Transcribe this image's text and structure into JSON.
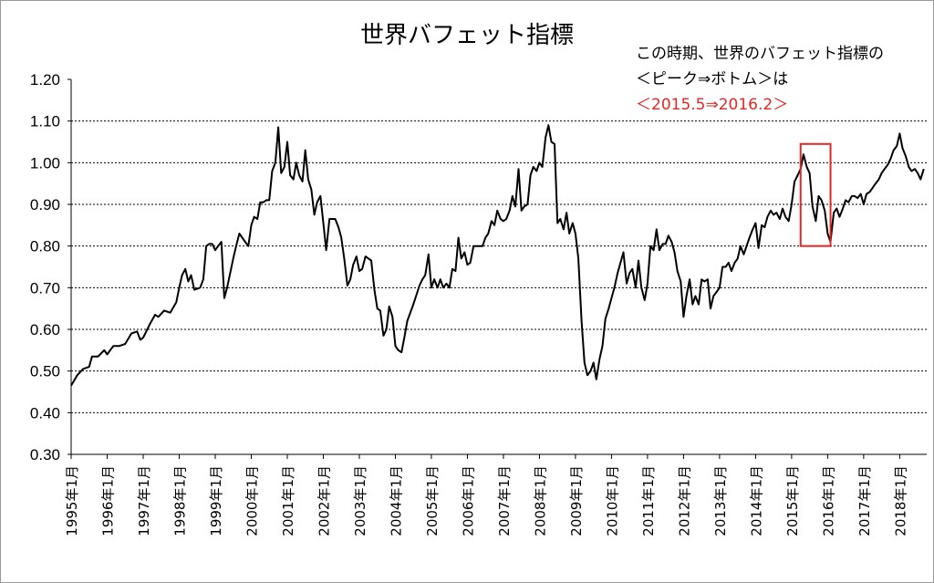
{
  "chart_data": {
    "type": "line",
    "title": "世界バフェット指標",
    "xlabel": "",
    "ylabel": "",
    "ylim": [
      0.3,
      1.2
    ],
    "yticks": [
      "1.20",
      "1.10",
      "1.00",
      "0.90",
      "0.80",
      "0.70",
      "0.60",
      "0.50",
      "0.40",
      "0.30"
    ],
    "x_start_year": 1995.0,
    "x_end_year": 2018.75,
    "x_tick_labels": [
      "1995年1月",
      "1996年1月",
      "1997年1月",
      "1998年1月",
      "1999年1月",
      "2000年1月",
      "2001年1月",
      "2002年1月",
      "2003年1月",
      "2004年1月",
      "2005年1月",
      "2006年1月",
      "2007年1月",
      "2008年1月",
      "2009年1月",
      "2010年1月",
      "2011年1月",
      "2012年1月",
      "2013年1月",
      "2014年1月",
      "2015年1月",
      "2016年1月",
      "2017年1月",
      "2018年1月"
    ],
    "grid": "horizontal dotted",
    "series": [
      {
        "name": "世界バフェット指標",
        "color": "#000000",
        "points": [
          [
            1995.0,
            0.465
          ],
          [
            1995.17,
            0.49
          ],
          [
            1995.33,
            0.505
          ],
          [
            1995.5,
            0.51
          ],
          [
            1995.58,
            0.535
          ],
          [
            1995.75,
            0.535
          ],
          [
            1995.92,
            0.55
          ],
          [
            1996.0,
            0.54
          ],
          [
            1996.17,
            0.56
          ],
          [
            1996.33,
            0.56
          ],
          [
            1996.5,
            0.565
          ],
          [
            1996.67,
            0.59
          ],
          [
            1996.83,
            0.595
          ],
          [
            1996.92,
            0.575
          ],
          [
            1997.0,
            0.58
          ],
          [
            1997.17,
            0.61
          ],
          [
            1997.33,
            0.635
          ],
          [
            1997.42,
            0.63
          ],
          [
            1997.58,
            0.645
          ],
          [
            1997.75,
            0.64
          ],
          [
            1997.92,
            0.665
          ],
          [
            1998.0,
            0.7
          ],
          [
            1998.08,
            0.73
          ],
          [
            1998.17,
            0.745
          ],
          [
            1998.25,
            0.715
          ],
          [
            1998.33,
            0.73
          ],
          [
            1998.42,
            0.695
          ],
          [
            1998.58,
            0.7
          ],
          [
            1998.67,
            0.72
          ],
          [
            1998.75,
            0.8
          ],
          [
            1998.83,
            0.805
          ],
          [
            1998.92,
            0.805
          ],
          [
            1999.0,
            0.79
          ],
          [
            1999.08,
            0.8
          ],
          [
            1999.17,
            0.81
          ],
          [
            1999.25,
            0.675
          ],
          [
            1999.33,
            0.7
          ],
          [
            1999.5,
            0.77
          ],
          [
            1999.58,
            0.8
          ],
          [
            1999.67,
            0.83
          ],
          [
            1999.83,
            0.81
          ],
          [
            1999.92,
            0.8
          ],
          [
            2000.0,
            0.85
          ],
          [
            2000.08,
            0.87
          ],
          [
            2000.17,
            0.865
          ],
          [
            2000.25,
            0.905
          ],
          [
            2000.33,
            0.905
          ],
          [
            2000.42,
            0.91
          ],
          [
            2000.5,
            0.91
          ],
          [
            2000.58,
            0.98
          ],
          [
            2000.67,
            1.0
          ],
          [
            2000.75,
            1.085
          ],
          [
            2000.83,
            0.975
          ],
          [
            2000.92,
            0.99
          ],
          [
            2001.0,
            1.05
          ],
          [
            2001.08,
            0.97
          ],
          [
            2001.17,
            0.96
          ],
          [
            2001.25,
            1.0
          ],
          [
            2001.33,
            0.97
          ],
          [
            2001.42,
            0.955
          ],
          [
            2001.5,
            1.03
          ],
          [
            2001.58,
            0.96
          ],
          [
            2001.67,
            0.935
          ],
          [
            2001.75,
            0.875
          ],
          [
            2001.83,
            0.905
          ],
          [
            2001.92,
            0.92
          ],
          [
            2002.0,
            0.855
          ],
          [
            2002.08,
            0.79
          ],
          [
            2002.17,
            0.865
          ],
          [
            2002.33,
            0.865
          ],
          [
            2002.42,
            0.845
          ],
          [
            2002.5,
            0.82
          ],
          [
            2002.58,
            0.77
          ],
          [
            2002.67,
            0.705
          ],
          [
            2002.75,
            0.72
          ],
          [
            2002.83,
            0.755
          ],
          [
            2002.92,
            0.775
          ],
          [
            2003.0,
            0.74
          ],
          [
            2003.08,
            0.745
          ],
          [
            2003.17,
            0.775
          ],
          [
            2003.33,
            0.765
          ],
          [
            2003.42,
            0.695
          ],
          [
            2003.5,
            0.65
          ],
          [
            2003.58,
            0.645
          ],
          [
            2003.67,
            0.585
          ],
          [
            2003.75,
            0.6
          ],
          [
            2003.83,
            0.655
          ],
          [
            2003.92,
            0.63
          ],
          [
            2004.0,
            0.56
          ],
          [
            2004.08,
            0.55
          ],
          [
            2004.17,
            0.545
          ],
          [
            2004.25,
            0.58
          ],
          [
            2004.33,
            0.62
          ],
          [
            2004.5,
            0.66
          ],
          [
            2004.67,
            0.705
          ],
          [
            2004.75,
            0.72
          ],
          [
            2004.83,
            0.73
          ],
          [
            2004.92,
            0.78
          ],
          [
            2005.0,
            0.7
          ],
          [
            2005.08,
            0.72
          ],
          [
            2005.17,
            0.7
          ],
          [
            2005.25,
            0.72
          ],
          [
            2005.33,
            0.7
          ],
          [
            2005.42,
            0.71
          ],
          [
            2005.5,
            0.7
          ],
          [
            2005.58,
            0.745
          ],
          [
            2005.67,
            0.74
          ],
          [
            2005.75,
            0.82
          ],
          [
            2005.83,
            0.77
          ],
          [
            2005.92,
            0.785
          ],
          [
            2006.0,
            0.755
          ],
          [
            2006.08,
            0.76
          ],
          [
            2006.17,
            0.8
          ],
          [
            2006.33,
            0.8
          ],
          [
            2006.42,
            0.8
          ],
          [
            2006.5,
            0.82
          ],
          [
            2006.58,
            0.83
          ],
          [
            2006.67,
            0.86
          ],
          [
            2006.75,
            0.85
          ],
          [
            2006.83,
            0.885
          ],
          [
            2006.92,
            0.865
          ],
          [
            2007.0,
            0.86
          ],
          [
            2007.08,
            0.865
          ],
          [
            2007.17,
            0.885
          ],
          [
            2007.25,
            0.92
          ],
          [
            2007.33,
            0.895
          ],
          [
            2007.42,
            0.985
          ],
          [
            2007.5,
            0.885
          ],
          [
            2007.58,
            0.895
          ],
          [
            2007.67,
            0.9
          ],
          [
            2007.75,
            0.97
          ],
          [
            2007.83,
            0.99
          ],
          [
            2007.92,
            0.98
          ],
          [
            2008.0,
            1.0
          ],
          [
            2008.08,
            0.99
          ],
          [
            2008.17,
            1.06
          ],
          [
            2008.25,
            1.09
          ],
          [
            2008.33,
            1.05
          ],
          [
            2008.42,
            1.045
          ],
          [
            2008.5,
            0.855
          ],
          [
            2008.58,
            0.865
          ],
          [
            2008.67,
            0.84
          ],
          [
            2008.75,
            0.88
          ],
          [
            2008.83,
            0.83
          ],
          [
            2008.92,
            0.855
          ],
          [
            2009.0,
            0.83
          ],
          [
            2009.08,
            0.77
          ],
          [
            2009.17,
            0.62
          ],
          [
            2009.25,
            0.52
          ],
          [
            2009.33,
            0.49
          ],
          [
            2009.42,
            0.5
          ],
          [
            2009.5,
            0.52
          ],
          [
            2009.58,
            0.48
          ],
          [
            2009.67,
            0.53
          ],
          [
            2009.75,
            0.56
          ],
          [
            2009.83,
            0.625
          ],
          [
            2009.92,
            0.65
          ],
          [
            2010.0,
            0.675
          ],
          [
            2010.08,
            0.7
          ],
          [
            2010.17,
            0.735
          ],
          [
            2010.25,
            0.76
          ],
          [
            2010.33,
            0.785
          ],
          [
            2010.42,
            0.71
          ],
          [
            2010.5,
            0.735
          ],
          [
            2010.58,
            0.745
          ],
          [
            2010.67,
            0.7
          ],
          [
            2010.75,
            0.765
          ],
          [
            2010.83,
            0.7
          ],
          [
            2010.92,
            0.67
          ],
          [
            2011.0,
            0.71
          ],
          [
            2011.08,
            0.8
          ],
          [
            2011.17,
            0.79
          ],
          [
            2011.25,
            0.84
          ],
          [
            2011.33,
            0.79
          ],
          [
            2011.42,
            0.805
          ],
          [
            2011.5,
            0.805
          ],
          [
            2011.58,
            0.825
          ],
          [
            2011.67,
            0.81
          ],
          [
            2011.75,
            0.785
          ],
          [
            2011.83,
            0.74
          ],
          [
            2011.92,
            0.715
          ],
          [
            2012.0,
            0.63
          ],
          [
            2012.08,
            0.68
          ],
          [
            2012.17,
            0.72
          ],
          [
            2012.25,
            0.66
          ],
          [
            2012.33,
            0.68
          ],
          [
            2012.42,
            0.66
          ],
          [
            2012.5,
            0.72
          ],
          [
            2012.58,
            0.715
          ],
          [
            2012.67,
            0.72
          ],
          [
            2012.75,
            0.65
          ],
          [
            2012.83,
            0.68
          ],
          [
            2012.92,
            0.69
          ],
          [
            2013.0,
            0.7
          ],
          [
            2013.08,
            0.75
          ],
          [
            2013.17,
            0.75
          ],
          [
            2013.25,
            0.76
          ],
          [
            2013.33,
            0.74
          ],
          [
            2013.42,
            0.76
          ],
          [
            2013.5,
            0.77
          ],
          [
            2013.58,
            0.8
          ],
          [
            2013.67,
            0.78
          ],
          [
            2013.75,
            0.8
          ],
          [
            2013.83,
            0.82
          ],
          [
            2013.92,
            0.84
          ],
          [
            2014.0,
            0.855
          ],
          [
            2014.08,
            0.795
          ],
          [
            2014.17,
            0.85
          ],
          [
            2014.25,
            0.845
          ],
          [
            2014.33,
            0.87
          ],
          [
            2014.42,
            0.885
          ],
          [
            2014.5,
            0.875
          ],
          [
            2014.58,
            0.88
          ],
          [
            2014.67,
            0.865
          ],
          [
            2014.75,
            0.89
          ],
          [
            2014.83,
            0.87
          ],
          [
            2014.92,
            0.86
          ],
          [
            2015.0,
            0.9
          ],
          [
            2015.08,
            0.955
          ],
          [
            2015.17,
            0.97
          ],
          [
            2015.25,
            0.985
          ],
          [
            2015.33,
            1.02
          ],
          [
            2015.42,
            0.99
          ],
          [
            2015.5,
            0.975
          ],
          [
            2015.58,
            0.895
          ],
          [
            2015.67,
            0.86
          ],
          [
            2015.75,
            0.92
          ],
          [
            2015.83,
            0.91
          ],
          [
            2015.92,
            0.885
          ],
          [
            2016.0,
            0.83
          ],
          [
            2016.08,
            0.81
          ],
          [
            2016.17,
            0.88
          ],
          [
            2016.25,
            0.89
          ],
          [
            2016.33,
            0.87
          ],
          [
            2016.42,
            0.89
          ],
          [
            2016.5,
            0.91
          ],
          [
            2016.58,
            0.905
          ],
          [
            2016.67,
            0.92
          ],
          [
            2016.75,
            0.92
          ],
          [
            2016.83,
            0.915
          ],
          [
            2016.92,
            0.925
          ],
          [
            2017.0,
            0.9
          ],
          [
            2017.08,
            0.925
          ],
          [
            2017.17,
            0.93
          ],
          [
            2017.25,
            0.94
          ],
          [
            2017.33,
            0.95
          ],
          [
            2017.42,
            0.96
          ],
          [
            2017.5,
            0.975
          ],
          [
            2017.58,
            0.985
          ],
          [
            2017.67,
            0.995
          ],
          [
            2017.75,
            1.01
          ],
          [
            2017.83,
            1.03
          ],
          [
            2017.92,
            1.04
          ],
          [
            2018.0,
            1.07
          ],
          [
            2018.08,
            1.035
          ],
          [
            2018.17,
            1.015
          ],
          [
            2018.25,
            0.99
          ],
          [
            2018.33,
            0.98
          ],
          [
            2018.42,
            0.985
          ],
          [
            2018.5,
            0.975
          ],
          [
            2018.58,
            0.96
          ],
          [
            2018.67,
            0.985
          ]
        ]
      }
    ],
    "highlight": {
      "x_range": [
        2015.25,
        2016.08
      ],
      "y_range": [
        0.8,
        1.045
      ],
      "color": "#e32626"
    },
    "annotation": {
      "line1": "この時期、世界のバフェット指標の",
      "line2": "＜ピーク⇒ボトム＞は",
      "line3": "＜2015.5⇒2016.2＞",
      "line3_color": "#e32626"
    }
  }
}
